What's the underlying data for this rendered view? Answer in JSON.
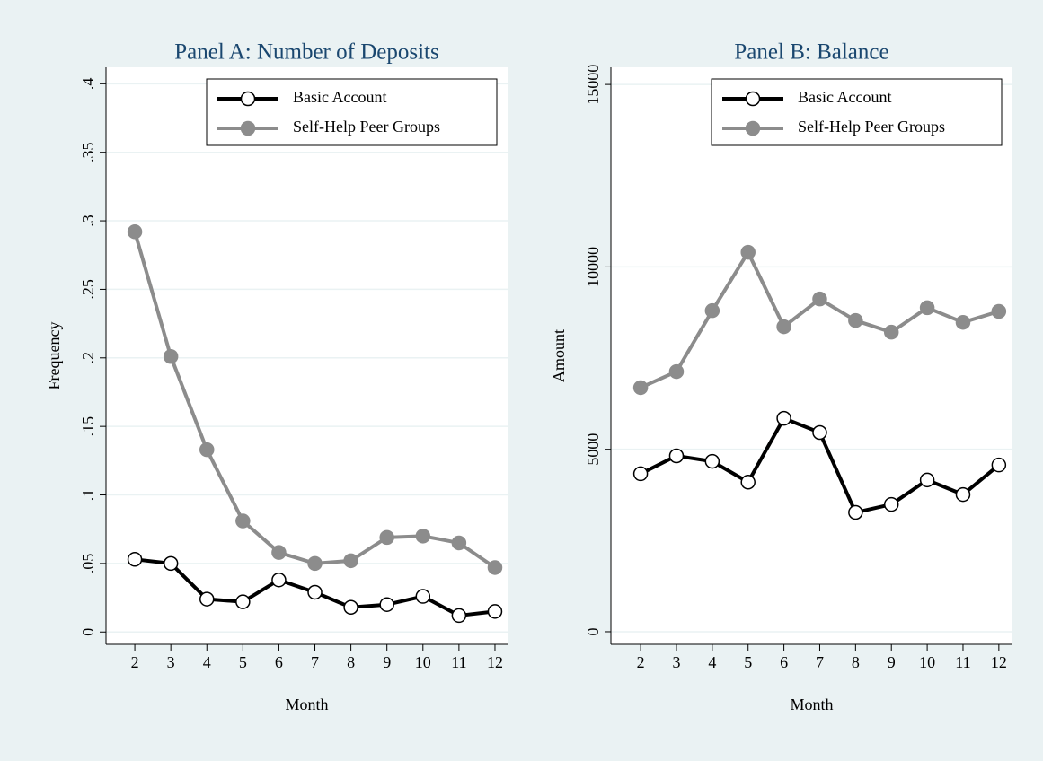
{
  "chart_data": [
    {
      "type": "line",
      "title": "Panel A: Number of Deposits",
      "xlabel": "Month",
      "ylabel": "Frequency",
      "x": [
        2,
        3,
        4,
        5,
        6,
        7,
        8,
        9,
        10,
        11,
        12
      ],
      "series": [
        {
          "name": "Basic Account",
          "color": "#000000",
          "marker_face": "#ffffff",
          "values": [
            0.053,
            0.05,
            0.024,
            0.022,
            0.038,
            0.029,
            0.018,
            0.02,
            0.026,
            0.012,
            0.015
          ]
        },
        {
          "name": "Self-Help Peer Groups",
          "color": "#8c8c8c",
          "marker_face": "#8c8c8c",
          "values": [
            0.292,
            0.201,
            0.133,
            0.081,
            0.058,
            0.05,
            0.052,
            0.069,
            0.07,
            0.065,
            0.047
          ]
        }
      ],
      "xlim": [
        1.2,
        12.35
      ],
      "ylim": [
        -0.009,
        0.412
      ],
      "xticks": [
        2,
        3,
        4,
        5,
        6,
        7,
        8,
        9,
        10,
        11,
        12
      ],
      "yticks": [
        0,
        {
          "value": 0.05,
          "label": ".05"
        },
        {
          "value": 0.1,
          "label": ".1"
        },
        {
          "value": 0.15,
          "label": ".15"
        },
        {
          "value": 0.2,
          "label": ".2"
        },
        {
          "value": 0.25,
          "label": ".25"
        },
        {
          "value": 0.3,
          "label": ".3"
        },
        {
          "value": 0.35,
          "label": ".35"
        },
        {
          "value": 0.4,
          "label": ".4"
        }
      ],
      "grid": true,
      "legend": "upper right"
    },
    {
      "type": "line",
      "title": "Panel B: Balance",
      "xlabel": "Month",
      "ylabel": "Amount",
      "x": [
        2,
        3,
        4,
        5,
        6,
        7,
        8,
        9,
        10,
        11,
        12
      ],
      "series": [
        {
          "name": "Basic Account",
          "color": "#000000",
          "marker_face": "#ffffff",
          "values": [
            4330,
            4820,
            4670,
            4100,
            5850,
            5460,
            3270,
            3490,
            4160,
            3760,
            4570
          ]
        },
        {
          "name": "Self-Help Peer Groups",
          "color": "#8c8c8c",
          "marker_face": "#8c8c8c",
          "values": [
            6690,
            7130,
            8800,
            10400,
            8360,
            9120,
            8530,
            8210,
            8880,
            8480,
            8780
          ]
        }
      ],
      "xlim": [
        1.17,
        12.38
      ],
      "ylim": [
        -345,
        15470
      ],
      "xticks": [
        2,
        3,
        4,
        5,
        6,
        7,
        8,
        9,
        10,
        11,
        12
      ],
      "yticks": [
        0,
        5000,
        10000,
        15000
      ],
      "grid": true,
      "legend": "upper right"
    }
  ]
}
